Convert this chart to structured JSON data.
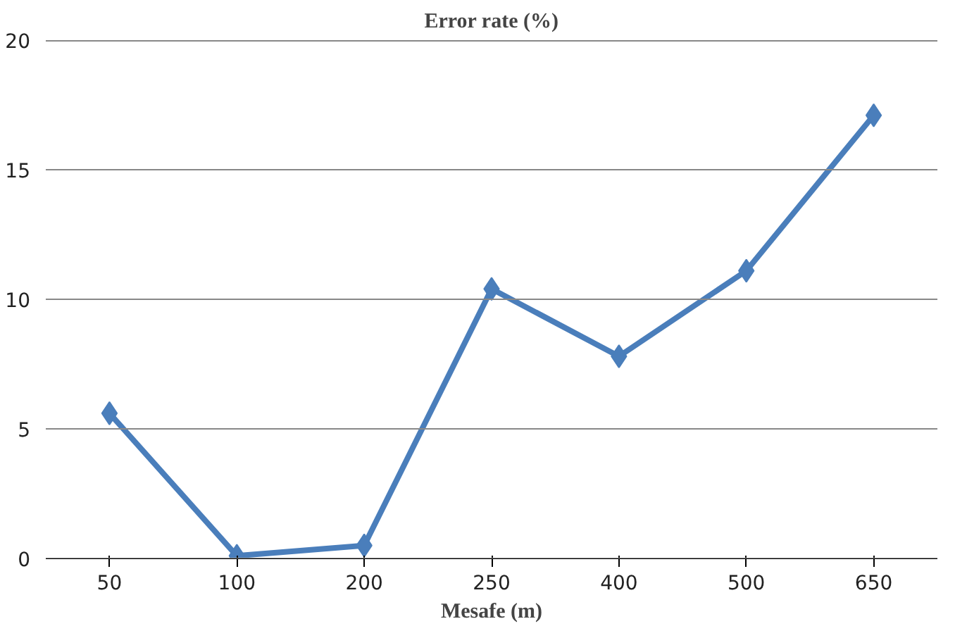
{
  "chart_data": {
    "type": "line",
    "title": "Error rate (%)",
    "xlabel": "Mesafe (m)",
    "categories": [
      "50",
      "100",
      "200",
      "250",
      "400",
      "500",
      "650"
    ],
    "series": [
      {
        "color": "#4a7ebb",
        "values": [
          5.6,
          0.1,
          0.5,
          10.4,
          7.8,
          11.1,
          17.1
        ]
      }
    ],
    "ylim": [
      0,
      20
    ],
    "yticks": [
      0,
      5,
      10,
      15,
      20
    ],
    "grid": "y",
    "marker": "diamond",
    "line_style": "solid"
  }
}
